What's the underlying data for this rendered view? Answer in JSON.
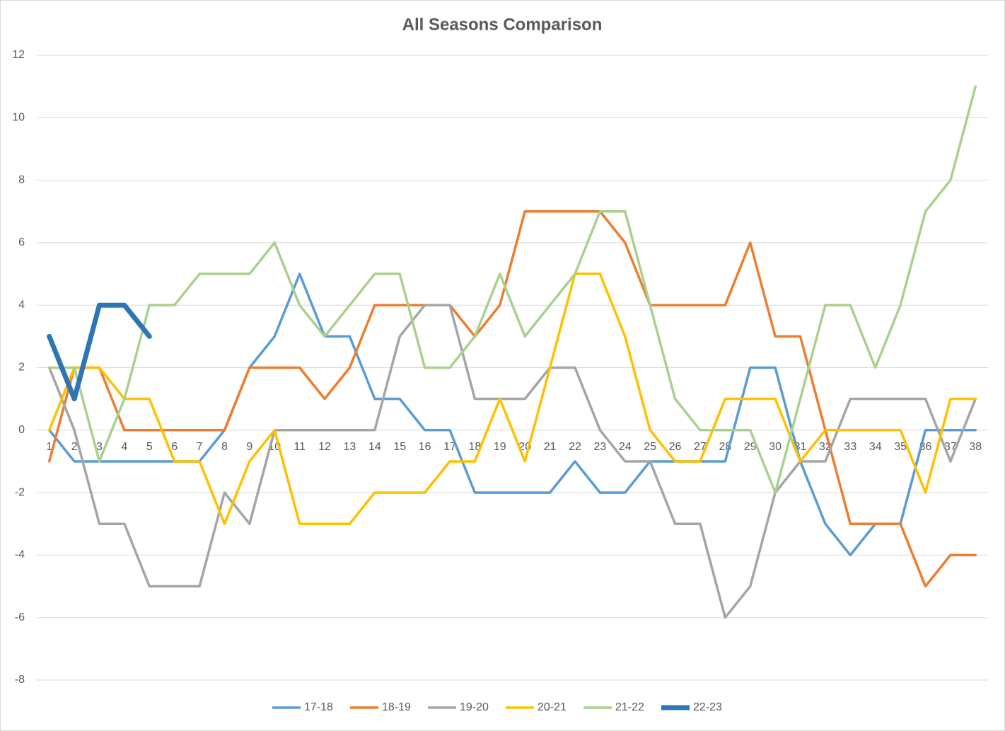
{
  "chart_data": {
    "type": "line",
    "title": "All Seasons Comparison",
    "categories": [
      "1",
      "2",
      "3",
      "4",
      "5",
      "6",
      "7",
      "8",
      "9",
      "10",
      "11",
      "12",
      "13",
      "14",
      "15",
      "16",
      "17",
      "18",
      "19",
      "20",
      "21",
      "22",
      "23",
      "24",
      "25",
      "26",
      "27",
      "28",
      "29",
      "30",
      "31",
      "32",
      "33",
      "34",
      "35",
      "36",
      "37",
      "38"
    ],
    "series": [
      {
        "name": "17-18",
        "color": "#5b9bd5",
        "line_width": 3.5,
        "values": [
          0,
          -1,
          -1,
          -1,
          -1,
          -1,
          -1,
          0,
          2,
          3,
          5,
          3,
          3,
          1,
          1,
          0,
          0,
          -2,
          -2,
          -2,
          -2,
          -1,
          -2,
          -2,
          -1,
          -1,
          -1,
          -1,
          2,
          2,
          -1,
          -3,
          -4,
          -3,
          -3,
          0,
          0,
          0
        ]
      },
      {
        "name": "18-19",
        "color": "#ed7d31",
        "line_width": 3.5,
        "values": [
          -1,
          2,
          2,
          0,
          0,
          0,
          0,
          0,
          2,
          2,
          2,
          1,
          2,
          4,
          4,
          4,
          4,
          3,
          4,
          7,
          7,
          7,
          7,
          6,
          4,
          4,
          4,
          4,
          6,
          3,
          3,
          0,
          -3,
          -3,
          -3,
          -5,
          -4,
          -4
        ]
      },
      {
        "name": "19-20",
        "color": "#a5a5a5",
        "line_width": 3.5,
        "values": [
          2,
          0,
          -3,
          -3,
          -5,
          -5,
          -5,
          -2,
          -3,
          0,
          0,
          0,
          0,
          0,
          3,
          4,
          4,
          1,
          1,
          1,
          2,
          2,
          0,
          -1,
          -1,
          -3,
          -3,
          -6,
          -5,
          -2,
          -1,
          -1,
          1,
          1,
          1,
          1,
          -1,
          1
        ]
      },
      {
        "name": "20-21",
        "color": "#ffc000",
        "line_width": 3.5,
        "values": [
          0,
          2,
          2,
          1,
          1,
          -1,
          -1,
          -3,
          -1,
          0,
          -3,
          -3,
          -3,
          -2,
          -2,
          -2,
          -1,
          -1,
          1,
          -1,
          2,
          5,
          5,
          3,
          0,
          -1,
          -1,
          1,
          1,
          1,
          -1,
          0,
          0,
          0,
          0,
          -2,
          1,
          1
        ]
      },
      {
        "name": "21-22",
        "color": "#a9d18e",
        "line_width": 3.5,
        "values": [
          2,
          2,
          -1,
          1,
          4,
          4,
          5,
          5,
          5,
          6,
          4,
          3,
          4,
          5,
          5,
          2,
          2,
          3,
          5,
          3,
          4,
          5,
          7,
          7,
          4,
          1,
          0,
          0,
          0,
          -2,
          1,
          4,
          4,
          2,
          4,
          7,
          8,
          11
        ]
      },
      {
        "name": "22-23",
        "color": "#2e75b6",
        "line_width": 7,
        "values": [
          3,
          1,
          4,
          4,
          3,
          null,
          null,
          null,
          null,
          null,
          null,
          null,
          null,
          null,
          null,
          null,
          null,
          null,
          null,
          null,
          null,
          null,
          null,
          null,
          null,
          null,
          null,
          null,
          null,
          null,
          null,
          null,
          null,
          null,
          null,
          null,
          null,
          null
        ]
      }
    ],
    "ylim": [
      -8,
      12
    ],
    "yticks": [
      -8,
      -6,
      -4,
      -2,
      0,
      2,
      4,
      6,
      8,
      10,
      12
    ],
    "grid": true,
    "legend": "bottom"
  }
}
